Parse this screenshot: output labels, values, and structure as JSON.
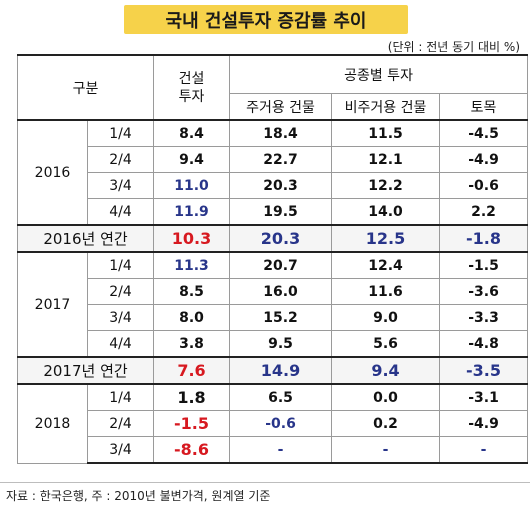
{
  "title": "국내 건설투자 증감률 추이",
  "unit": "(단위 : 전년 동기 대비 %)",
  "header": {
    "category": "구분",
    "construction_investment": "건설\n투자",
    "by_type": "공종별 투자",
    "residential": "주거용 건물",
    "nonresidential": "비주거용 건물",
    "civil": "토목"
  },
  "rows": [
    {
      "year": "2016",
      "q": "1/4",
      "ci": "8.4",
      "res": "18.4",
      "nonres": "11.5",
      "civil": "-4.5"
    },
    {
      "q": "2/4",
      "ci": "9.4",
      "res": "22.7",
      "nonres": "12.1",
      "civil": "-4.9"
    },
    {
      "q": "3/4",
      "ci": "11.0",
      "res": "20.3",
      "nonres": "12.2",
      "civil": "-0.6"
    },
    {
      "q": "4/4",
      "ci": "11.9",
      "res": "19.5",
      "nonres": "14.0",
      "civil": "2.2"
    },
    {
      "annual": "2016년 연간",
      "ci": "10.3",
      "res": "20.3",
      "nonres": "12.5",
      "civil": "-1.8"
    },
    {
      "year": "2017",
      "q": "1/4",
      "ci": "11.3",
      "res": "20.7",
      "nonres": "12.4",
      "civil": "-1.5"
    },
    {
      "q": "2/4",
      "ci": "8.5",
      "res": "16.0",
      "nonres": "11.6",
      "civil": "-3.6"
    },
    {
      "q": "3/4",
      "ci": "8.0",
      "res": "15.2",
      "nonres": "9.0",
      "civil": "-3.3"
    },
    {
      "q": "4/4",
      "ci": "3.8",
      "res": "9.5",
      "nonres": "5.6",
      "civil": "-4.8"
    },
    {
      "annual": "2017년 연간",
      "ci": "7.6",
      "res": "14.9",
      "nonres": "9.4",
      "civil": "-3.5"
    },
    {
      "year": "2018",
      "q": "1/4",
      "ci": "1.8",
      "res": "6.5",
      "nonres": "0.0",
      "civil": "-3.1"
    },
    {
      "q": "2/4",
      "ci": "-1.5",
      "res": "-0.6",
      "nonres": "0.2",
      "civil": "-4.9"
    },
    {
      "q": "3/4",
      "ci": "-8.6",
      "res": "-",
      "nonres": "-",
      "civil": "-"
    }
  ],
  "footer": "자료 : 한국은행,  주 : 2010년 불변가격, 원계열 기준"
}
